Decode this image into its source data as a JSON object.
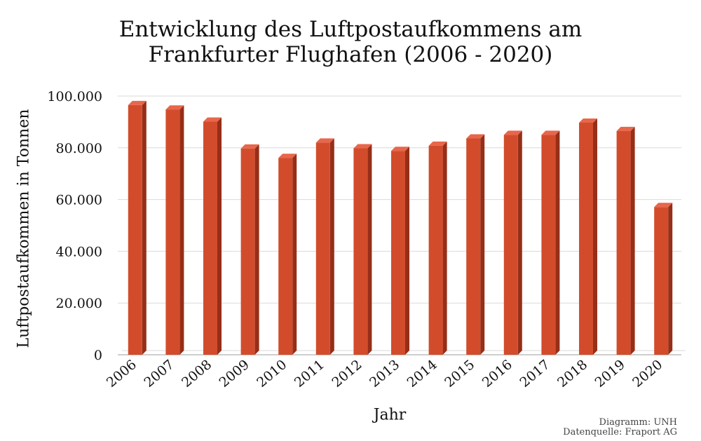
{
  "chart_data": {
    "type": "bar",
    "title_line1": "Entwicklung des Luftpostaufkommens am",
    "title_line2": "Frankfurter Flughafen (2006 - 2020)",
    "xlabel": "Jahr",
    "ylabel": "Luftpostaufkommen in Tonnen",
    "categories": [
      "2006",
      "2007",
      "2008",
      "2009",
      "2010",
      "2011",
      "2012",
      "2013",
      "2014",
      "2015",
      "2016",
      "2017",
      "2018",
      "2019",
      "2020"
    ],
    "values": [
      96500,
      94800,
      90100,
      79700,
      76100,
      82000,
      79800,
      78800,
      80800,
      83600,
      85000,
      85000,
      89700,
      86500,
      57100
    ],
    "ylim": [
      0,
      100000
    ],
    "yticks": [
      0,
      20000,
      40000,
      60000,
      80000,
      100000
    ],
    "ytick_labels": [
      "0",
      "20.000",
      "40.000",
      "60.000",
      "80.000",
      "100.000"
    ],
    "grid": true,
    "colors": {
      "bar_front": "#D24C2C",
      "bar_side": "#962E18",
      "bar_top": "#E8664A",
      "grid": "#D9D9D9",
      "axis": "#BFBFBF"
    }
  },
  "credits": {
    "line1": "Diagramm: UNH",
    "line2": "Datenquelle: Fraport AG"
  }
}
